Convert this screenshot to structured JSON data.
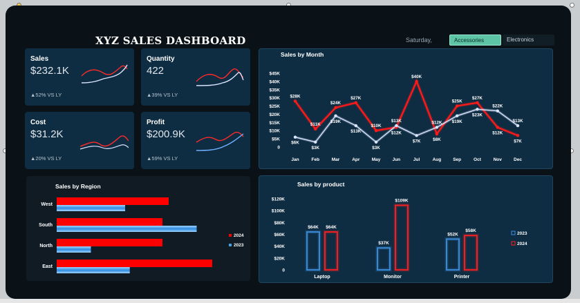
{
  "header": {
    "title": "XYZ SALES DASHBOARD",
    "day": "Saturday,",
    "slicer": {
      "active": "Accessories",
      "inactive": "Electronics"
    }
  },
  "kpis": [
    {
      "label": "Sales",
      "value": "$232.1K",
      "delta": "▲52% VS LY"
    },
    {
      "label": "Quantity",
      "value": "422",
      "delta": "▲39% VS LY"
    },
    {
      "label": "Cost",
      "value": "$31.2K",
      "delta": "▲20% VS LY"
    },
    {
      "label": "Profit",
      "value": "$200.9K",
      "delta": "▲59% VS LY"
    }
  ],
  "colors": {
    "red": "#ff1a1a",
    "blue": "#3fa0e6",
    "light": "#d9e4ff"
  },
  "chart_data": [
    {
      "type": "line",
      "title": "Sales by Month",
      "categories": [
        "Jan",
        "Feb",
        "Mar",
        "Apr",
        "May",
        "Jun",
        "Jul",
        "Aug",
        "Sep",
        "Oct",
        "Nov",
        "Dec"
      ],
      "ylim": [
        0,
        45000
      ],
      "yticks": [
        "0",
        "$5K",
        "$10K",
        "$15K",
        "$20K",
        "$25K",
        "$30K",
        "$35K",
        "$40K",
        "$45K"
      ],
      "series": [
        {
          "name": "2024",
          "values": [
            28000,
            11000,
            24000,
            27000,
            10000,
            12000,
            40000,
            8000,
            25000,
            27000,
            12000,
            7000
          ],
          "labels": [
            "$28K",
            "$11K",
            "$24K",
            "$27K",
            "$10K",
            "$12K",
            "$40K",
            "$8K",
            "$25K",
            "$27K",
            "$12K",
            "$7K"
          ]
        },
        {
          "name": "2023",
          "values": [
            6000,
            3000,
            19000,
            13000,
            3000,
            13000,
            7000,
            12000,
            19000,
            23000,
            22000,
            13000
          ],
          "labels": [
            "$6K",
            "$3K",
            "$19K",
            "$13K",
            "$3K",
            "$13K",
            "$7K",
            "$12K",
            "$19K",
            "$23K",
            "$22K",
            "$13K"
          ]
        }
      ]
    },
    {
      "type": "bar",
      "title": "Sales by Region",
      "categories": [
        "West",
        "South",
        "North",
        "East"
      ],
      "series": [
        {
          "name": "2024",
          "values": [
            72,
            68,
            68,
            100
          ]
        },
        {
          "name": "2023",
          "values": [
            44,
            90,
            22,
            47
          ]
        }
      ],
      "legend": [
        "2024",
        "2023"
      ]
    },
    {
      "type": "bar",
      "title": "Sales by product",
      "categories": [
        "Laptop",
        "Monitor",
        "Printer"
      ],
      "ylim": [
        0,
        120000
      ],
      "yticks": [
        "0",
        "$20K",
        "$40K",
        "$60K",
        "$80K",
        "$100K",
        "$120K"
      ],
      "series": [
        {
          "name": "2023",
          "values": [
            64000,
            37000,
            52000
          ],
          "labels": [
            "$64K",
            "$37K",
            "$52K"
          ]
        },
        {
          "name": "2024",
          "values": [
            64000,
            109000,
            58000
          ],
          "labels": [
            "$64K",
            "$109K",
            "$58K"
          ]
        }
      ],
      "legend": [
        "2023",
        "2024"
      ]
    }
  ]
}
